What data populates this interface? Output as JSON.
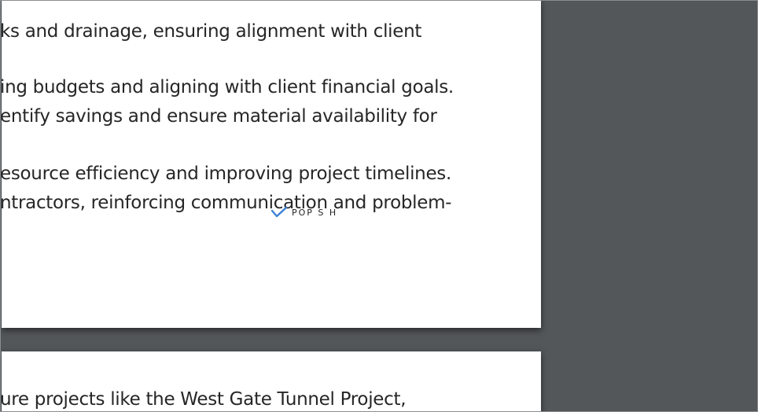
{
  "document": {
    "page1": {
      "lines": [
        "ks and drainage, ensuring alignment with client",
        "ing budgets and aligning with client financial goals.",
        "entify savings and ensure material availability for",
        "esource efficiency and improving project timelines.",
        "ntractors, reinforcing communication and problem-"
      ],
      "stamp": {
        "text": "POP S  H",
        "icon": "checkmark-icon",
        "color": "#3b82d6"
      }
    },
    "page2": {
      "lines": [
        "ure projects like the West Gate Tunnel Project,"
      ]
    }
  },
  "colors": {
    "viewer_background": "#53575a",
    "page_background": "#ffffff",
    "text": "#262626"
  }
}
